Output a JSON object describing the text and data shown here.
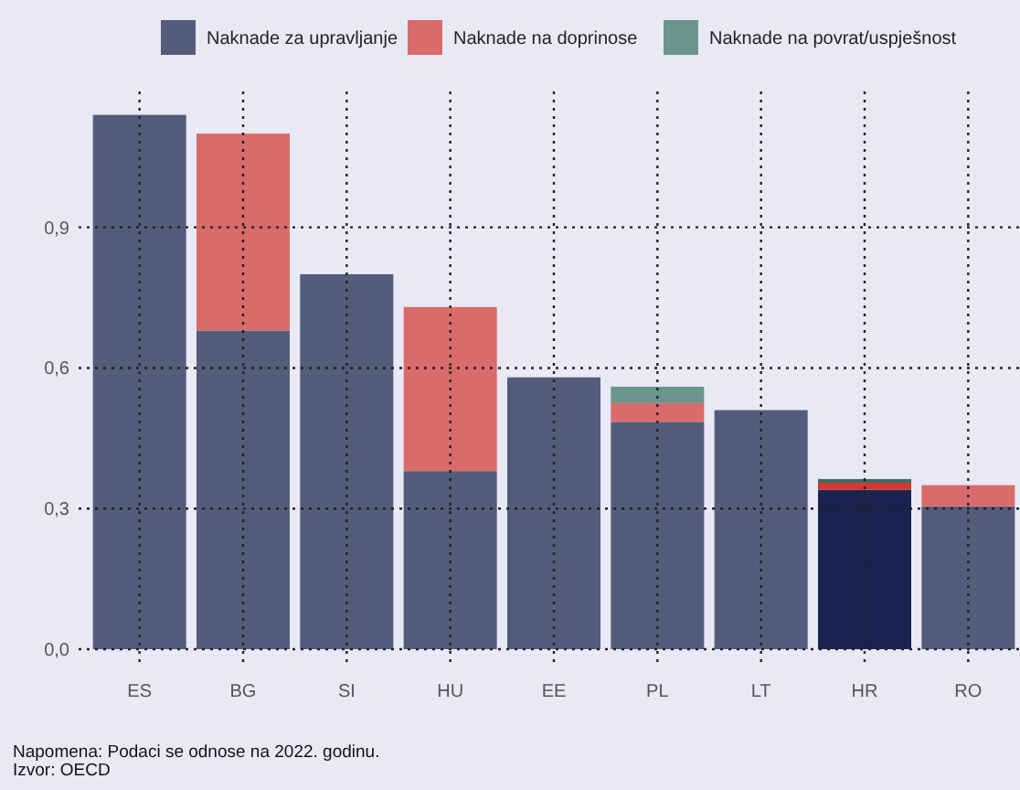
{
  "chart_data": {
    "type": "bar",
    "stacked": true,
    "categories": [
      "ES",
      "BG",
      "SI",
      "HU",
      "EE",
      "PL",
      "LT",
      "HR",
      "RO"
    ],
    "series": [
      {
        "name": "Naknade za upravljanje",
        "color": "#545c7b",
        "colors": [
          "#545c7b",
          "#545c7b",
          "#545c7b",
          "#545c7b",
          "#545c7b",
          "#545c7b",
          "#545c7b",
          "#1a234f",
          "#545c7b"
        ],
        "values": [
          1.14,
          0.68,
          0.8,
          0.38,
          0.58,
          0.485,
          0.51,
          0.34,
          0.305
        ]
      },
      {
        "name": "Naknade na doprinose",
        "color": "#d96b6a",
        "colors": [
          null,
          "#d96b6a",
          null,
          "#d96b6a",
          null,
          "#d96b6a",
          null,
          "#d2382f",
          "#d96b6a"
        ],
        "values": [
          null,
          0.42,
          null,
          0.35,
          null,
          0.04,
          null,
          0.015,
          0.045
        ]
      },
      {
        "name": "Naknade na povrat/uspješnost",
        "color": "#6a958b",
        "colors": [
          null,
          null,
          null,
          null,
          null,
          "#6a958b",
          null,
          "#3a6b60",
          null
        ],
        "values": [
          null,
          null,
          null,
          null,
          null,
          0.035,
          null,
          0.008,
          null
        ]
      }
    ],
    "ylim": [
      0,
      1.19
    ],
    "yticks": [
      {
        "value": 0,
        "label": "0,0"
      },
      {
        "value": 0.3,
        "label": "0,3"
      },
      {
        "value": 0.6,
        "label": "0,6"
      },
      {
        "value": 0.9,
        "label": "0,9"
      }
    ],
    "grid": true,
    "legend": "top",
    "annotations": [
      "Napomena: Podaci se odnose na 2022. godinu.",
      "Izvor: OECD"
    ]
  }
}
